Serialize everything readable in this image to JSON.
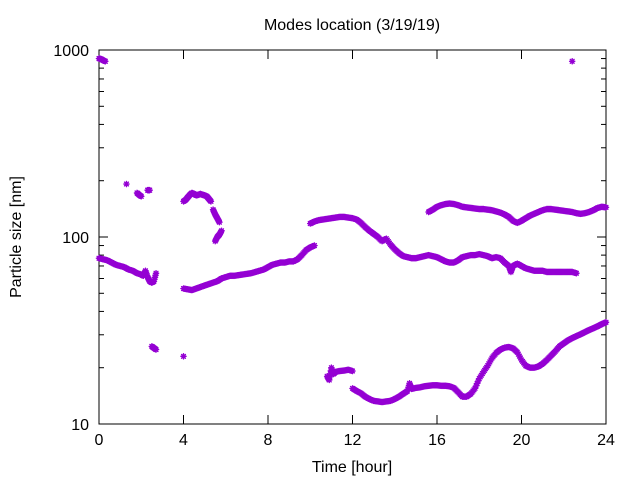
{
  "chart_data": {
    "type": "scatter",
    "title": "Modes location (3/19/19)",
    "xlabel": "Time [hour]",
    "ylabel": "Particle size [nm]",
    "xlim": [
      0,
      24
    ],
    "ylim": [
      10,
      1000
    ],
    "y_scale": "log",
    "grid": false,
    "legend": "none",
    "marker_color": "#9400d3",
    "marker_style": "asterisk",
    "x_ticks": [
      0,
      4,
      8,
      12,
      16,
      20,
      24
    ],
    "y_ticks": [
      10,
      100,
      1000
    ],
    "x_tick_labels": [
      "0",
      "4",
      "8",
      "12",
      "16",
      "20",
      "24"
    ],
    "y_tick_labels": [
      "10",
      "100",
      "1000"
    ],
    "series": [
      {
        "segments": [
          [
            [
              0.0,
              900
            ],
            [
              0.1,
              895
            ],
            [
              0.2,
              880
            ],
            [
              0.3,
              870
            ]
          ],
          [
            [
              22.4,
              870
            ]
          ],
          [
            [
              1.3,
              192
            ]
          ],
          [
            [
              1.8,
              172
            ],
            [
              1.9,
              168
            ],
            [
              2.0,
              165
            ]
          ],
          [
            [
              2.3,
              178
            ],
            [
              2.4,
              178
            ]
          ],
          [
            [
              4.0,
              155
            ],
            [
              4.1,
              158
            ],
            [
              4.2,
              163
            ],
            [
              4.3,
              168
            ],
            [
              4.4,
              172
            ],
            [
              4.5,
              170
            ],
            [
              4.6,
              167
            ],
            [
              4.7,
              168
            ],
            [
              4.8,
              170
            ],
            [
              4.9,
              168
            ],
            [
              5.0,
              167
            ],
            [
              5.1,
              165
            ],
            [
              5.2,
              160
            ],
            [
              5.3,
              155
            ]
          ],
          [
            [
              5.4,
              140
            ],
            [
              5.5,
              132
            ],
            [
              5.6,
              126
            ],
            [
              5.7,
              120
            ]
          ],
          [
            [
              5.5,
              95
            ],
            [
              5.6,
              100
            ],
            [
              5.7,
              103
            ],
            [
              5.8,
              108
            ]
          ],
          [
            [
              0.0,
              77
            ],
            [
              0.2,
              76
            ],
            [
              0.4,
              75
            ],
            [
              0.6,
              73
            ],
            [
              0.8,
              71
            ],
            [
              1.0,
              70
            ],
            [
              1.2,
              69
            ],
            [
              1.4,
              67
            ],
            [
              1.6,
              66
            ],
            [
              1.8,
              64
            ],
            [
              2.0,
              63
            ],
            [
              2.1,
              62
            ],
            [
              2.2,
              66
            ],
            [
              2.3,
              61
            ],
            [
              2.4,
              58
            ],
            [
              2.5,
              57
            ],
            [
              2.6,
              58
            ],
            [
              2.7,
              64
            ]
          ],
          [
            [
              2.5,
              26
            ],
            [
              2.6,
              25.5
            ],
            [
              2.7,
              25
            ]
          ],
          [
            [
              4.0,
              23
            ]
          ],
          [
            [
              4.0,
              53
            ],
            [
              4.2,
              52.5
            ],
            [
              4.4,
              52
            ],
            [
              4.6,
              53
            ],
            [
              4.8,
              54
            ],
            [
              5.0,
              55
            ],
            [
              5.2,
              56
            ],
            [
              5.4,
              57
            ],
            [
              5.6,
              58
            ],
            [
              5.8,
              60
            ],
            [
              6.0,
              61
            ],
            [
              6.2,
              62
            ],
            [
              6.4,
              62
            ],
            [
              6.6,
              62.5
            ],
            [
              6.8,
              63
            ],
            [
              7.0,
              63.5
            ],
            [
              7.2,
              64
            ],
            [
              7.4,
              65
            ],
            [
              7.6,
              66
            ],
            [
              7.8,
              67
            ],
            [
              8.0,
              69
            ],
            [
              8.2,
              71
            ],
            [
              8.4,
              72
            ],
            [
              8.6,
              73
            ],
            [
              8.8,
              73
            ],
            [
              9.0,
              74
            ],
            [
              9.2,
              74
            ],
            [
              9.4,
              76
            ],
            [
              9.6,
              80
            ],
            [
              9.8,
              85
            ],
            [
              10.0,
              88
            ],
            [
              10.2,
              90
            ]
          ],
          [
            [
              10.0,
              118
            ],
            [
              10.2,
              121
            ],
            [
              10.4,
              123
            ],
            [
              10.6,
              124
            ],
            [
              10.8,
              125
            ],
            [
              11.0,
              126
            ],
            [
              11.2,
              127
            ],
            [
              11.4,
              128
            ],
            [
              11.6,
              128
            ],
            [
              11.8,
              127
            ],
            [
              12.0,
              126
            ],
            [
              12.2,
              124
            ],
            [
              12.4,
              119
            ],
            [
              12.6,
              113
            ],
            [
              12.8,
              108
            ],
            [
              13.0,
              104
            ],
            [
              13.2,
              100
            ],
            [
              13.4,
              95
            ],
            [
              13.6,
              98
            ],
            [
              13.8,
              91
            ],
            [
              14.0,
              86
            ],
            [
              14.2,
              82
            ],
            [
              14.4,
              79
            ],
            [
              14.6,
              78
            ],
            [
              14.8,
              77
            ],
            [
              15.0,
              77
            ],
            [
              15.2,
              78
            ],
            [
              15.4,
              79
            ],
            [
              15.6,
              80
            ],
            [
              15.8,
              79
            ],
            [
              16.0,
              78
            ],
            [
              16.2,
              76
            ],
            [
              16.4,
              74
            ],
            [
              16.6,
              73
            ],
            [
              16.8,
              73
            ],
            [
              17.0,
              75
            ],
            [
              17.2,
              78
            ],
            [
              17.4,
              79
            ],
            [
              17.6,
              80
            ],
            [
              17.8,
              80
            ],
            [
              18.0,
              81
            ],
            [
              18.2,
              80
            ],
            [
              18.4,
              79
            ],
            [
              18.6,
              77
            ],
            [
              18.8,
              78
            ],
            [
              19.0,
              77
            ],
            [
              19.2,
              73
            ],
            [
              19.4,
              70
            ],
            [
              19.5,
              65
            ],
            [
              19.6,
              70
            ],
            [
              19.8,
              72
            ],
            [
              20.0,
              70
            ],
            [
              20.2,
              68
            ],
            [
              20.4,
              67
            ],
            [
              20.6,
              66
            ],
            [
              20.8,
              66
            ],
            [
              21.0,
              66
            ],
            [
              21.2,
              65
            ],
            [
              21.4,
              65
            ],
            [
              21.6,
              65
            ],
            [
              21.8,
              65
            ],
            [
              22.0,
              65
            ],
            [
              22.2,
              65
            ],
            [
              22.4,
              65
            ],
            [
              22.6,
              64
            ]
          ],
          [
            [
              15.6,
              136
            ],
            [
              15.8,
              140
            ],
            [
              16.0,
              145
            ],
            [
              16.2,
              148
            ],
            [
              16.4,
              150
            ],
            [
              16.6,
              151
            ],
            [
              16.8,
              150
            ],
            [
              17.0,
              148
            ],
            [
              17.2,
              145
            ],
            [
              17.4,
              144
            ],
            [
              17.6,
              143
            ],
            [
              17.8,
              142
            ],
            [
              18.0,
              141
            ],
            [
              18.2,
              141
            ],
            [
              18.4,
              140
            ],
            [
              18.6,
              139
            ],
            [
              18.8,
              137
            ],
            [
              19.0,
              135
            ],
            [
              19.2,
              132
            ],
            [
              19.4,
              128
            ],
            [
              19.6,
              122
            ],
            [
              19.8,
              119
            ],
            [
              20.0,
              122
            ],
            [
              20.2,
              126
            ],
            [
              20.4,
              130
            ],
            [
              20.6,
              133
            ],
            [
              20.8,
              136
            ],
            [
              21.0,
              139
            ],
            [
              21.2,
              141
            ],
            [
              21.4,
              141
            ],
            [
              21.6,
              140
            ],
            [
              21.8,
              139
            ],
            [
              22.0,
              138
            ],
            [
              22.2,
              137
            ],
            [
              22.4,
              136
            ],
            [
              22.6,
              134
            ],
            [
              22.8,
              133
            ],
            [
              23.0,
              134
            ],
            [
              23.2,
              136
            ],
            [
              23.4,
              139
            ],
            [
              23.6,
              143
            ],
            [
              23.8,
              145
            ],
            [
              24.0,
              144
            ]
          ],
          [
            [
              10.8,
              18
            ],
            [
              10.9,
              17.2
            ],
            [
              11.0,
              20
            ],
            [
              11.1,
              18.5
            ],
            [
              11.2,
              19
            ],
            [
              11.4,
              19.2
            ],
            [
              11.6,
              19.3
            ],
            [
              11.8,
              19.5
            ],
            [
              12.0,
              19.2
            ]
          ],
          [
            [
              12.0,
              15.5
            ],
            [
              12.2,
              15
            ],
            [
              12.4,
              14.6
            ],
            [
              12.6,
              14
            ],
            [
              12.8,
              13.6
            ],
            [
              13.0,
              13.3
            ],
            [
              13.2,
              13.2
            ],
            [
              13.4,
              13.1
            ],
            [
              13.6,
              13.2
            ],
            [
              13.8,
              13.3
            ],
            [
              14.0,
              13.6
            ],
            [
              14.2,
              14
            ],
            [
              14.4,
              14.5
            ],
            [
              14.6,
              15
            ],
            [
              14.7,
              16.5
            ],
            [
              14.8,
              15.4
            ],
            [
              15.0,
              15.6
            ],
            [
              15.2,
              15.7
            ],
            [
              15.4,
              15.9
            ],
            [
              15.6,
              16
            ],
            [
              15.8,
              16.1
            ],
            [
              16.0,
              16.1
            ],
            [
              16.2,
              16
            ],
            [
              16.4,
              16
            ],
            [
              16.6,
              15.9
            ],
            [
              16.8,
              15.6
            ],
            [
              17.0,
              14.8
            ],
            [
              17.2,
              14
            ],
            [
              17.4,
              14
            ],
            [
              17.6,
              14.5
            ],
            [
              17.8,
              15.5
            ],
            [
              18.0,
              17.5
            ],
            [
              18.2,
              19
            ],
            [
              18.4,
              20.5
            ],
            [
              18.6,
              22.5
            ],
            [
              18.8,
              24
            ],
            [
              19.0,
              25
            ],
            [
              19.2,
              25.6
            ],
            [
              19.4,
              25.8
            ],
            [
              19.6,
              25.4
            ],
            [
              19.8,
              24.2
            ],
            [
              20.0,
              22
            ],
            [
              20.2,
              20.5
            ],
            [
              20.4,
              20
            ],
            [
              20.6,
              20
            ],
            [
              20.8,
              20.3
            ],
            [
              21.0,
              21
            ],
            [
              21.2,
              22
            ],
            [
              21.4,
              23.2
            ],
            [
              21.6,
              24.5
            ],
            [
              21.8,
              26
            ],
            [
              22.0,
              27
            ],
            [
              22.2,
              28
            ],
            [
              22.4,
              28.8
            ],
            [
              22.6,
              29.5
            ],
            [
              22.8,
              30.2
            ],
            [
              23.0,
              31
            ],
            [
              23.2,
              31.8
            ],
            [
              23.4,
              32.5
            ],
            [
              23.6,
              33.3
            ],
            [
              23.8,
              34.2
            ],
            [
              24.0,
              35
            ]
          ]
        ]
      }
    ]
  }
}
